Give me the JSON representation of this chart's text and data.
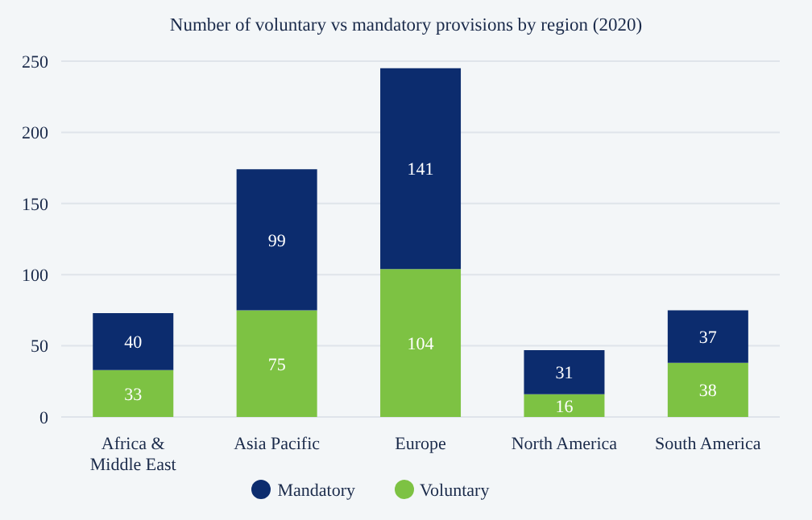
{
  "chart_data": {
    "type": "bar",
    "title": "Number of voluntary vs mandatory provisions by region (2020)",
    "categories": [
      "Africa & Middle East",
      "Asia Pacific",
      "Europe",
      "North America",
      "South America"
    ],
    "stacked": true,
    "series": [
      {
        "name": "Voluntary",
        "color": "#7dc243",
        "values": [
          33,
          75,
          104,
          16,
          38
        ]
      },
      {
        "name": "Mandatory",
        "color": "#0c2c6e",
        "values": [
          40,
          99,
          141,
          31,
          37
        ]
      }
    ],
    "ylim": [
      0,
      250
    ],
    "yticks": [
      0,
      50,
      100,
      150,
      200,
      250
    ],
    "grid": "y",
    "legend": "bottom",
    "data_labels": true
  }
}
